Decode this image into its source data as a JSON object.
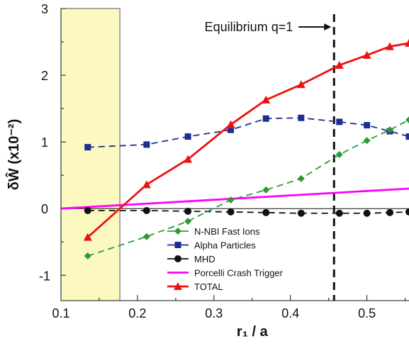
{
  "chart_data": {
    "type": "line",
    "xlabel": "r₁ / a",
    "ylabel": "δŴ (x10⁻²)",
    "xlim": [
      0.1,
      0.555
    ],
    "ylim": [
      -1.38,
      3.0
    ],
    "x_ticks": [
      0.1,
      0.2,
      0.3,
      0.4,
      0.5
    ],
    "x_tick_labels": [
      "0.1",
      "0.2",
      "0.3",
      "0.4",
      "0.5"
    ],
    "y_ticks": [
      -1,
      0,
      1,
      2,
      3
    ],
    "y_tick_labels": [
      "-1",
      "0",
      "1",
      "2",
      "3"
    ],
    "shaded_region": {
      "x": [
        0.1,
        0.177
      ],
      "color": "#fbf8c0"
    },
    "annotation": {
      "text": "Equilibrium q=1",
      "x": 0.457
    },
    "grid": false,
    "legend_position": "bottom-center",
    "series": [
      {
        "name": "N-NBI Fast Ions",
        "color": "#2e9a33",
        "marker": "diamond",
        "dash": true,
        "x": [
          0.135,
          0.212,
          0.266,
          0.322,
          0.368,
          0.414,
          0.464,
          0.5,
          0.53,
          0.555
        ],
        "y": [
          -0.71,
          -0.42,
          -0.19,
          0.13,
          0.28,
          0.45,
          0.81,
          1.02,
          1.18,
          1.33
        ]
      },
      {
        "name": "Alpha Particles",
        "color": "#1a2f8f",
        "marker": "square",
        "dash": true,
        "x": [
          0.135,
          0.212,
          0.266,
          0.322,
          0.368,
          0.414,
          0.464,
          0.5,
          0.53,
          0.555
        ],
        "y": [
          0.92,
          0.96,
          1.08,
          1.18,
          1.35,
          1.36,
          1.3,
          1.25,
          1.16,
          1.08
        ]
      },
      {
        "name": "MHD",
        "color": "#111111",
        "marker": "circle",
        "dash": true,
        "x": [
          0.135,
          0.212,
          0.266,
          0.322,
          0.368,
          0.414,
          0.464,
          0.5,
          0.53,
          0.555
        ],
        "y": [
          -0.03,
          -0.03,
          -0.04,
          -0.05,
          -0.06,
          -0.07,
          -0.07,
          -0.07,
          -0.06,
          -0.05
        ]
      },
      {
        "name": "Porcelli Crash Trigger",
        "color": "#ff00ff",
        "marker": "none",
        "dash": false,
        "x": [
          0.1,
          0.555
        ],
        "y": [
          0.0,
          0.3
        ]
      },
      {
        "name": "TOTAL",
        "color": "#ee1111",
        "marker": "triangle",
        "dash": false,
        "x": [
          0.135,
          0.212,
          0.266,
          0.322,
          0.368,
          0.414,
          0.464,
          0.5,
          0.53,
          0.555
        ],
        "y": [
          -0.43,
          0.36,
          0.74,
          1.26,
          1.63,
          1.86,
          2.15,
          2.3,
          2.43,
          2.48
        ]
      }
    ]
  }
}
